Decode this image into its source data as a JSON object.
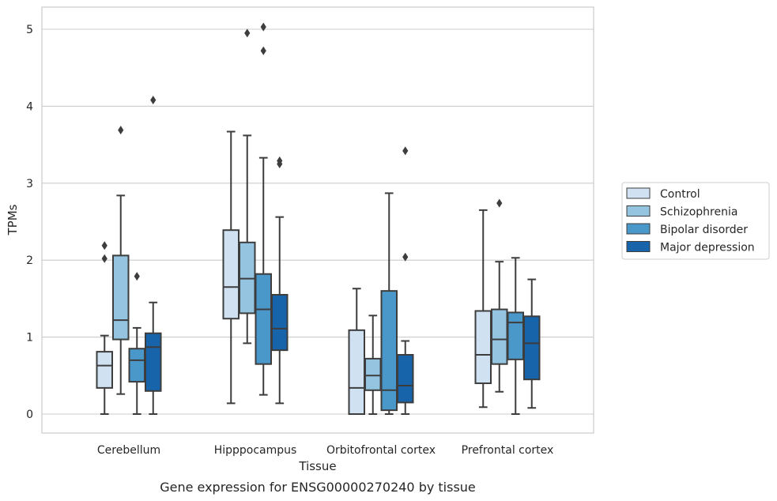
{
  "caption": "Gene expression for ENSG00000270240 by tissue",
  "chart_data": {
    "type": "boxplot",
    "xlabel": "Tissue",
    "ylabel": "TPMs",
    "ylim": [
      -0.24,
      5.29
    ],
    "yticks": [
      0,
      1,
      2,
      3,
      4,
      5
    ],
    "grid": true,
    "legend_position": "right",
    "categories": [
      "Cerebellum",
      "Hipppocampus",
      "Orbitofrontal cortex",
      "Prefrontal cortex"
    ],
    "series": [
      {
        "name": "Control",
        "color": "#d0e1f2",
        "boxes": [
          {
            "whisker_low": 0.0,
            "q1": 0.34,
            "median": 0.63,
            "q3": 0.81,
            "whisker_high": 1.02,
            "outliers": [
              2.02,
              2.19
            ]
          },
          {
            "whisker_low": 0.14,
            "q1": 1.24,
            "median": 1.65,
            "q3": 2.39,
            "whisker_high": 3.67,
            "outliers": []
          },
          {
            "whisker_low": 0.0,
            "q1": 0.0,
            "median": 0.34,
            "q3": 1.09,
            "whisker_high": 1.63,
            "outliers": []
          },
          {
            "whisker_low": 0.09,
            "q1": 0.4,
            "median": 0.77,
            "q3": 1.34,
            "whisker_high": 2.65,
            "outliers": []
          }
        ]
      },
      {
        "name": "Schizophrenia",
        "color": "#94c4df",
        "boxes": [
          {
            "whisker_low": 0.26,
            "q1": 0.97,
            "median": 1.22,
            "q3": 2.06,
            "whisker_high": 2.84,
            "outliers": [
              3.69
            ]
          },
          {
            "whisker_low": 0.92,
            "q1": 1.31,
            "median": 1.76,
            "q3": 2.23,
            "whisker_high": 3.62,
            "outliers": [
              4.95
            ]
          },
          {
            "whisker_low": 0.0,
            "q1": 0.31,
            "median": 0.5,
            "q3": 0.72,
            "whisker_high": 1.28,
            "outliers": []
          },
          {
            "whisker_low": 0.29,
            "q1": 0.65,
            "median": 0.97,
            "q3": 1.36,
            "whisker_high": 1.98,
            "outliers": [
              2.74
            ]
          }
        ]
      },
      {
        "name": "Bipolar disorder",
        "color": "#4a98c9",
        "boxes": [
          {
            "whisker_low": 0.0,
            "q1": 0.42,
            "median": 0.7,
            "q3": 0.85,
            "whisker_high": 1.12,
            "outliers": [
              1.79
            ]
          },
          {
            "whisker_low": 0.25,
            "q1": 0.65,
            "median": 1.36,
            "q3": 1.82,
            "whisker_high": 3.33,
            "outliers": [
              4.72,
              5.03
            ]
          },
          {
            "whisker_low": 0.0,
            "q1": 0.05,
            "median": 0.31,
            "q3": 1.6,
            "whisker_high": 2.87,
            "outliers": []
          },
          {
            "whisker_low": 0.0,
            "q1": 0.71,
            "median": 1.19,
            "q3": 1.32,
            "whisker_high": 2.03,
            "outliers": []
          }
        ]
      },
      {
        "name": "Major depression",
        "color": "#1764ab",
        "boxes": [
          {
            "whisker_low": 0.0,
            "q1": 0.3,
            "median": 0.87,
            "q3": 1.05,
            "whisker_high": 1.45,
            "outliers": [
              4.08
            ]
          },
          {
            "whisker_low": 0.14,
            "q1": 0.83,
            "median": 1.11,
            "q3": 1.55,
            "whisker_high": 2.56,
            "outliers": [
              3.25,
              3.29
            ]
          },
          {
            "whisker_low": 0.0,
            "q1": 0.15,
            "median": 0.37,
            "q3": 0.77,
            "whisker_high": 0.95,
            "outliers": [
              2.04,
              3.42
            ]
          },
          {
            "whisker_low": 0.08,
            "q1": 0.45,
            "median": 0.92,
            "q3": 1.27,
            "whisker_high": 1.75,
            "outliers": []
          }
        ]
      }
    ]
  }
}
